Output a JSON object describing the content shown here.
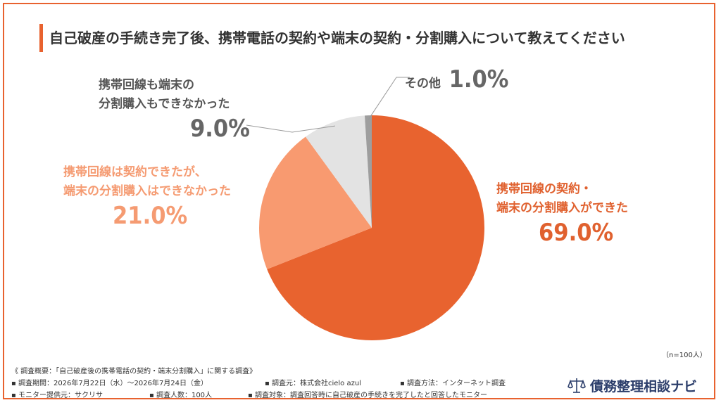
{
  "chart_data": {
    "type": "pie",
    "title": "自己破産の手続き完了後、携帯電話の契約や端末の契約・分割購入について教えてください",
    "slices": [
      {
        "label_lines": [
          "携帯回線の契約・",
          "端末の分割購入ができた"
        ],
        "value": 69.0,
        "display": "69.0%",
        "color": "#e8632f"
      },
      {
        "label_lines": [
          "携帯回線は契約できたが、",
          "端末の分割購入はできなかった"
        ],
        "value": 21.0,
        "display": "21.0%",
        "color": "#f89a70"
      },
      {
        "label_lines": [
          "携帯回線も端末の",
          "分割購入もできなかった"
        ],
        "value": 9.0,
        "display": "9.0%",
        "color": "#e3e3e3"
      },
      {
        "label_lines": [
          "その他"
        ],
        "value": 1.0,
        "display": "1.0%",
        "color": "#9e9e9e"
      }
    ]
  },
  "sample_size": "（n=100人）",
  "survey": {
    "heading": "《 調査概要：「自己破産後の携帯電話の契約・端末分割購入」に関する調査》",
    "row1": [
      "▪ 調査期間：2026年7月22日（水）～2026年7月24日（金）",
      "▪ 調査元：株式会社cielo azul",
      "▪ 調査方法：インターネット調査"
    ],
    "row2": [
      "▪ モニター提供元：サクリサ",
      "▪ 調査人数：100人",
      "▪ 調査対象：調査回答時に自己破産の手続きを完了したと回答したモニター"
    ]
  },
  "brand": {
    "name": "債務整理相談ナビ",
    "icon": "scales-of-justice-icon",
    "color": "#2c3e6b"
  }
}
